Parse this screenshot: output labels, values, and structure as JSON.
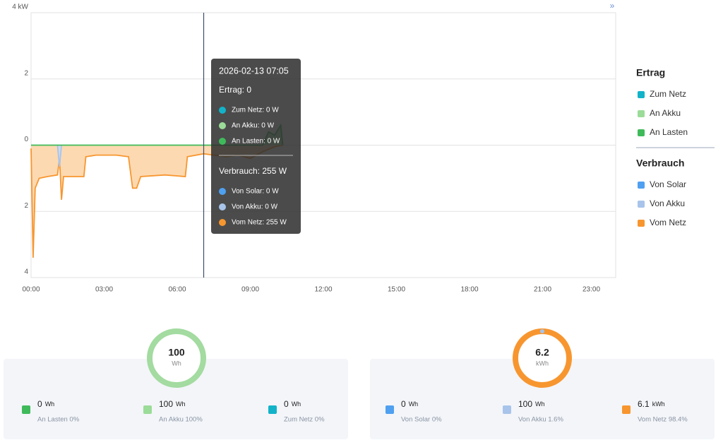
{
  "chart_data": {
    "type": "area",
    "xlim": [
      "00:00",
      "24:00"
    ],
    "xticks": [
      "00:00",
      "03:00",
      "06:00",
      "09:00",
      "12:00",
      "15:00",
      "18:00",
      "21:00",
      "23:00"
    ],
    "ylim": [
      -4,
      4
    ],
    "yticks": [
      {
        "value": 4,
        "label": "4 kW"
      },
      2,
      0,
      {
        "value": -2,
        "label": "2"
      },
      {
        "value": -4,
        "label": "4"
      }
    ],
    "grid": true,
    "series": [
      {
        "name": "Vom Netz",
        "color": "#f7962f",
        "fill": "#fdd5a8",
        "x": [
          "00:00",
          "00:05",
          "00:10",
          "00:20",
          "00:40",
          "01:05",
          "01:10",
          "01:15",
          "01:20",
          "02:10",
          "02:15",
          "02:40",
          "03:00",
          "03:30",
          "04:00",
          "04:10",
          "04:20",
          "04:30",
          "05:30",
          "06:20",
          "06:25",
          "07:05",
          "07:30",
          "08:00",
          "08:30",
          "09:00",
          "09:30",
          "10:00",
          "10:20"
        ],
        "values": [
          -0.1,
          -3.4,
          -1.3,
          -1.0,
          -0.95,
          -0.9,
          -0.4,
          -1.65,
          -0.95,
          -0.95,
          -0.35,
          -0.3,
          -0.3,
          -0.3,
          -0.35,
          -1.3,
          -1.3,
          -0.95,
          -0.9,
          -0.95,
          -0.35,
          -0.26,
          -0.3,
          -0.35,
          -0.3,
          -0.4,
          -0.2,
          -0.05,
          0
        ]
      },
      {
        "name": "Von Akku",
        "color": "#a8c4ea",
        "fill": "#c8daf3",
        "x": [
          "01:05",
          "01:10",
          "01:15"
        ],
        "values": [
          0,
          -0.65,
          0
        ]
      },
      {
        "name": "An Lasten",
        "color": "#3fba5a",
        "fill": "#a6e2b3",
        "x": [
          "00:00",
          "09:30",
          "09:45",
          "10:00",
          "10:15",
          "10:20"
        ],
        "values": [
          0,
          0,
          0.4,
          0.3,
          0.6,
          0
        ]
      }
    ]
  },
  "header": {
    "expand": "»"
  },
  "tooltip": {
    "title": "2026-02-13 07:05",
    "sections": [
      {
        "heading": "Ertrag: 0",
        "items": [
          {
            "label": "Zum Netz: 0 W",
            "color": "#12b3c9"
          },
          {
            "label": "An Akku: 0 W",
            "color": "#9bdc98"
          },
          {
            "label": "An Lasten: 0 W",
            "color": "#3fba5a"
          }
        ]
      },
      {
        "heading": "Verbrauch: 255 W",
        "items": [
          {
            "label": "Von Solar: 0 W",
            "color": "#4fa0f0"
          },
          {
            "label": "Von Akku: 0 W",
            "color": "#a8c4ea"
          },
          {
            "label": "Vom Netz: 255 W",
            "color": "#f7962f"
          }
        ]
      }
    ]
  },
  "legend": {
    "groups": [
      {
        "title": "Ertrag",
        "items": [
          {
            "label": "Zum Netz",
            "color": "#12b3c9"
          },
          {
            "label": "An Akku",
            "color": "#9bdc98"
          },
          {
            "label": "An Lasten",
            "color": "#3fba5a"
          }
        ]
      },
      {
        "title": "Verbrauch",
        "items": [
          {
            "label": "Von Solar",
            "color": "#4fa0f0"
          },
          {
            "label": "Von Akku",
            "color": "#a8c4ea"
          },
          {
            "label": "Vom Netz",
            "color": "#f7962f"
          }
        ]
      }
    ]
  },
  "cards": [
    {
      "ring": {
        "value": "100",
        "unit": "Wh",
        "color": "#a3dba0"
      },
      "items": [
        {
          "value": "0",
          "unit": "Wh",
          "label": "An Lasten 0%",
          "color": "#3fba5a"
        },
        {
          "value": "100",
          "unit": "Wh",
          "label": "An Akku 100%",
          "color": "#9bdc98"
        },
        {
          "value": "0",
          "unit": "Wh",
          "label": "Zum Netz 0%",
          "color": "#12b3c9"
        }
      ]
    },
    {
      "ring": {
        "value": "6.2",
        "unit": "kWh",
        "color": "#f7962f"
      },
      "items": [
        {
          "value": "0",
          "unit": "Wh",
          "label": "Von Solar 0%",
          "color": "#4fa0f0"
        },
        {
          "value": "100",
          "unit": "Wh",
          "label": "Von Akku 1.6%",
          "color": "#a8c4ea"
        },
        {
          "value": "6.1",
          "unit": "kWh",
          "label": "Vom Netz 98.4%",
          "color": "#f7962f"
        }
      ]
    }
  ]
}
